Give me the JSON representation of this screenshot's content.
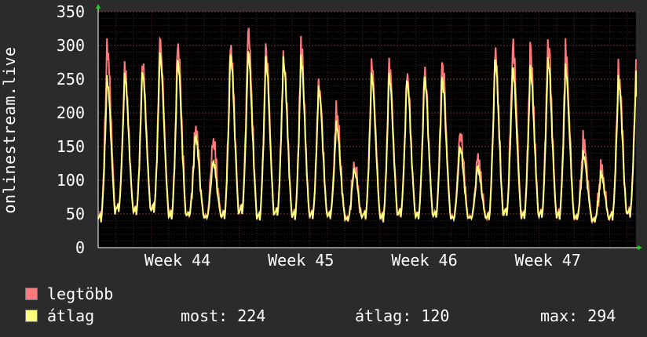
{
  "y_axis_label": "onlinestream.live",
  "colors": {
    "background": "#2b2b2b",
    "plot_background": "#000000",
    "grid": "#5a2a2a",
    "series_max": "#ff7a7a",
    "series_avg": "#ffff80",
    "arrow": "#22cc22"
  },
  "legend": {
    "max_label": "legtöbb",
    "avg_label": "átlag",
    "stats": {
      "most": "most: 224",
      "atlag": "átlag: 120",
      "max": "max: 294"
    }
  },
  "chart_data": {
    "type": "line",
    "title": "",
    "xlabel": "",
    "ylabel": "onlinestream.live",
    "ylim": [
      0,
      350
    ],
    "yticks": [
      0,
      50,
      100,
      150,
      200,
      250,
      300,
      350
    ],
    "grid": true,
    "x_week_labels": [
      "Week 44",
      "Week 45",
      "Week 46",
      "Week 47"
    ],
    "x_week_label_days": [
      4.5,
      11.5,
      18.5,
      25.5
    ],
    "x_range_days": [
      0,
      30.5
    ],
    "daily_peak_max": [
      302,
      272,
      276,
      310,
      307,
      178,
      163,
      310,
      330,
      300,
      290,
      300,
      250,
      208,
      125,
      270,
      277,
      260,
      265,
      278,
      175,
      132,
      293,
      310,
      293,
      308,
      295,
      160,
      117,
      268,
      278
    ],
    "daily_peak_avg": [
      253,
      258,
      263,
      290,
      283,
      168,
      130,
      292,
      295,
      283,
      283,
      282,
      240,
      185,
      117,
      256,
      258,
      252,
      257,
      254,
      152,
      120,
      283,
      272,
      267,
      282,
      268,
      140,
      110,
      252,
      262
    ],
    "daily_trough": [
      38,
      52,
      48,
      50,
      40,
      45,
      42,
      40,
      48,
      38,
      45,
      40,
      42,
      44,
      40,
      42,
      38,
      45,
      40,
      42,
      40,
      42,
      38,
      45,
      40,
      42,
      40,
      42,
      38,
      40,
      45
    ],
    "last_value": 224,
    "series": [
      {
        "name": "legtöbb"
      },
      {
        "name": "átlag"
      }
    ]
  }
}
